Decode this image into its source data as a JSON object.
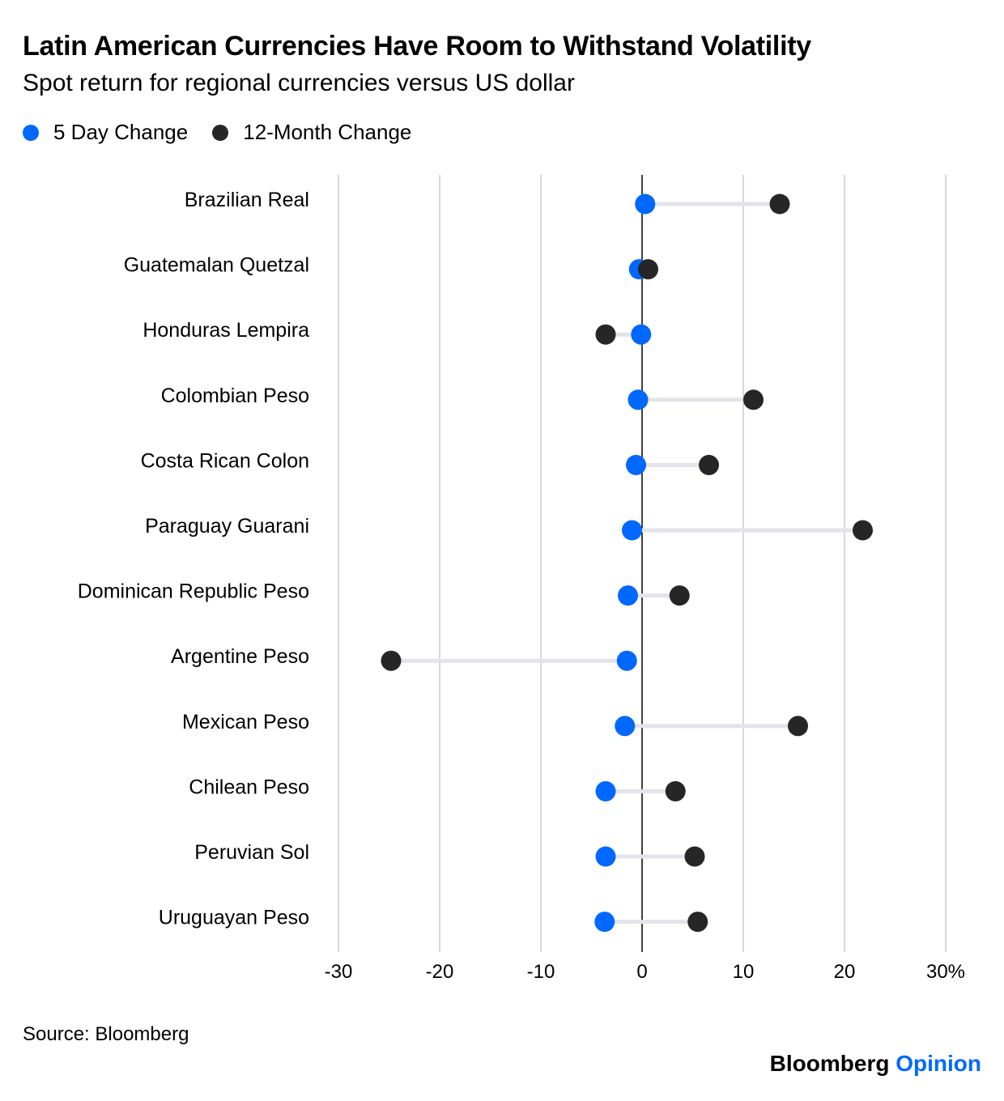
{
  "header": {
    "title": "Latin American Currencies Have Room to Withstand Volatility",
    "subtitle": "Spot return for regional currencies versus US dollar"
  },
  "legend": {
    "five_day_label": "5 Day Change",
    "twelve_month_label": "12-Month Change"
  },
  "colors": {
    "five_day": "#0068ff",
    "twelve_month": "#262626",
    "connector": "#e3e3ea",
    "grid": "#cccccc",
    "zero_line": "#000000",
    "brand_accent": "#0068ff"
  },
  "chart_data": {
    "type": "dot-range",
    "title": "Latin American Currencies Have Room to Withstand Volatility",
    "subtitle": "Spot return for regional currencies versus US dollar",
    "xlim": [
      -30,
      30
    ],
    "xticks": [
      -30,
      -20,
      -10,
      0,
      10,
      20,
      30
    ],
    "xtick_labels": [
      "-30",
      "-20",
      "-10",
      "0",
      "10",
      "20",
      "30%"
    ],
    "categories": [
      "Brazilian Real",
      "Guatemalan Quetzal",
      "Honduras Lempira",
      "Colombian Peso",
      "Costa Rican Colon",
      "Paraguay Guarani",
      "Dominican Republic Peso",
      "Argentine Peso",
      "Mexican Peso",
      "Chilean Peso",
      "Peruvian Sol",
      "Uruguayan Peso"
    ],
    "series": [
      {
        "name": "5 Day Change",
        "values": [
          0.3,
          -0.3,
          -0.1,
          -0.4,
          -0.6,
          -1.0,
          -1.4,
          -1.5,
          -1.7,
          -3.6,
          -3.6,
          -3.7
        ]
      },
      {
        "name": "12-Month Change",
        "values": [
          13.6,
          0.6,
          -3.6,
          11.0,
          6.6,
          21.8,
          3.7,
          -24.8,
          15.4,
          3.3,
          5.2,
          5.5
        ]
      }
    ],
    "grid": true,
    "legend_position": "top-left"
  },
  "footer": {
    "source": "Source: Bloomberg",
    "brand_main": "Bloomberg",
    "brand_accent": "Opinion"
  }
}
